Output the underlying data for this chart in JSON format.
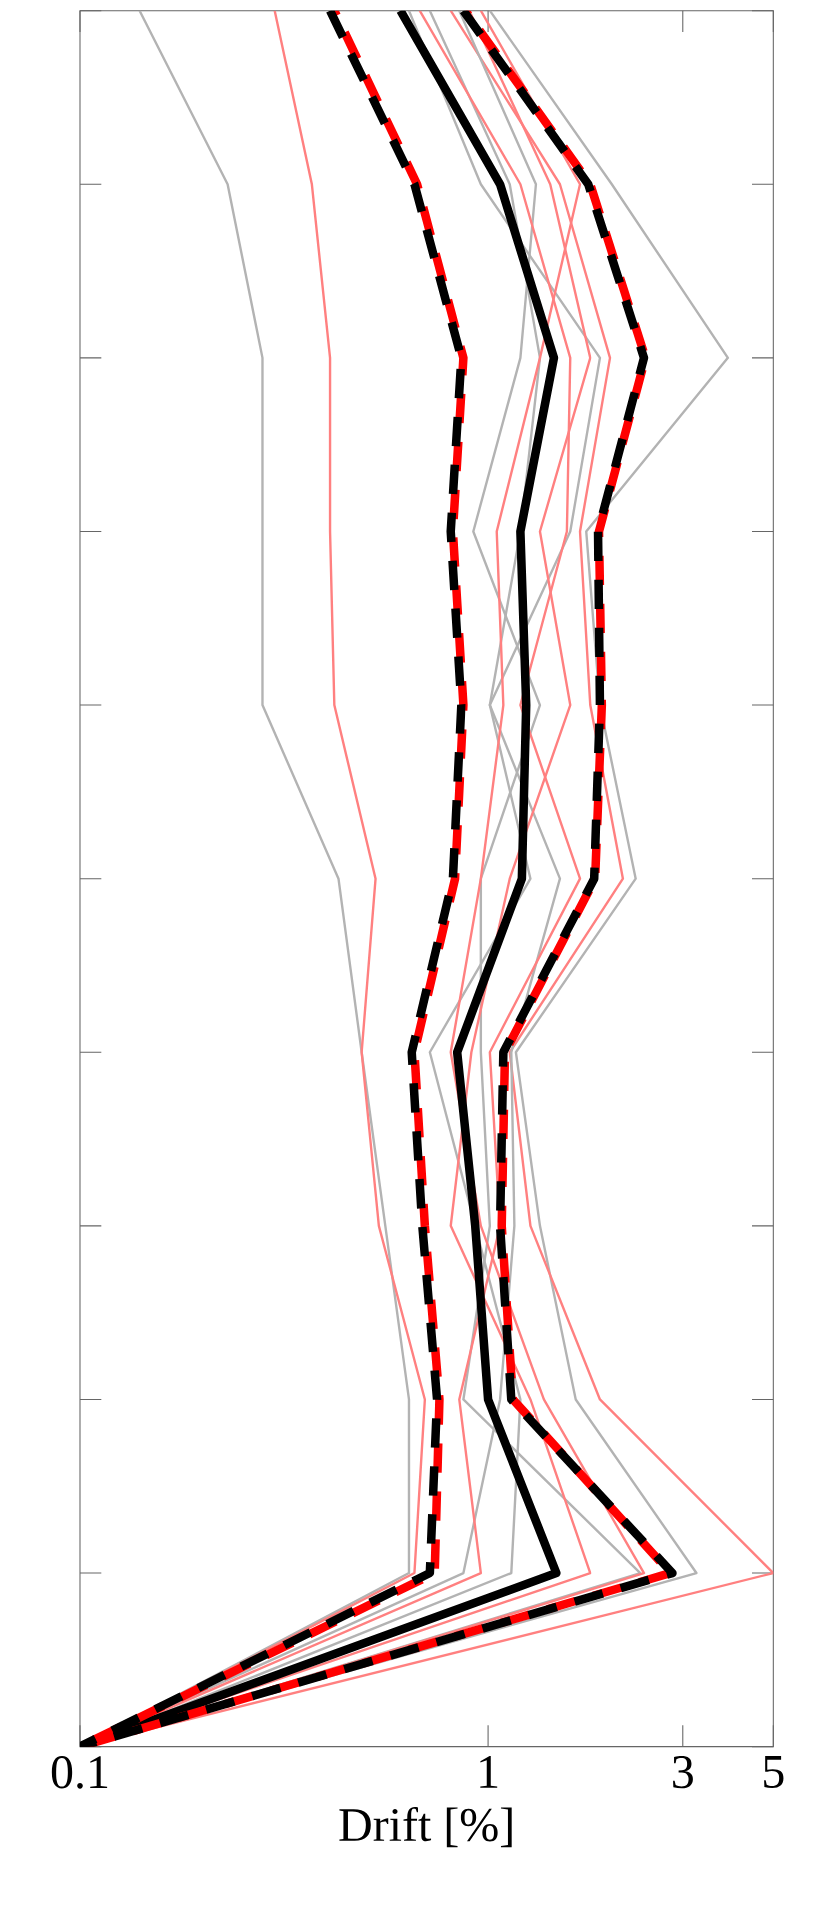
{
  "chart_data": {
    "type": "line",
    "orientation": "horizontal",
    "xlabel": "Drift [%]",
    "categories": [
      null,
      null,
      null,
      null,
      null,
      null,
      null,
      null,
      null,
      null,
      null
    ],
    "xlim": [
      0.1,
      5
    ],
    "xticks": [
      0.1,
      1,
      3,
      5
    ],
    "log": "x",
    "tick_labels": "x",
    "series": [
      {
        "color": "#b3b3b3",
        "line_style": "solid",
        "values": [
          0.14,
          0.23,
          0.28,
          0.28,
          0.28,
          0.43,
          0.49,
          0.56,
          0.64,
          0.64,
          0.1
        ]
      },
      {
        "color": "#ff8080",
        "line_style": "solid",
        "values": [
          0.3,
          0.37,
          0.41,
          0.41,
          0.42,
          0.53,
          0.49,
          0.54,
          0.7,
          0.66,
          0.1
        ]
      },
      {
        "color": "#b3b3b3",
        "line_style": "solid",
        "values": [
          1.01,
          2.01,
          3.87,
          1.74,
          1.88,
          2.3,
          1.17,
          1.34,
          1.64,
          3.24,
          0.1
        ]
      },
      {
        "color": "#ff8080",
        "line_style": "solid",
        "values": [
          0.81,
          1.5,
          1.99,
          1.68,
          1.78,
          2.14,
          1.13,
          1.27,
          1.88,
          5,
          0.1
        ]
      },
      {
        "color": "#b3b3b3",
        "line_style": "solid",
        "values": [
          0.72,
          1.13,
          1.34,
          1.2,
          1.01,
          1.27,
          0.72,
          0.93,
          1.2,
          1.14,
          0.1
        ]
      },
      {
        "color": "#b3b3b3",
        "line_style": "solid",
        "values": [
          0.85,
          1.31,
          1.2,
          0.92,
          1.34,
          0.96,
          0.96,
          1.01,
          0.87,
          2.36,
          0.1
        ]
      },
      {
        "color": "#b3b3b3",
        "line_style": "solid",
        "values": [
          0.64,
          0.96,
          1.88,
          1.59,
          1.01,
          1.5,
          1.14,
          1.16,
          1.07,
          0.87,
          0.1
        ]
      },
      {
        "color": "#ff8080",
        "line_style": "solid",
        "values": [
          0.9,
          1.42,
          1.78,
          1.34,
          1.59,
          1.13,
          0.91,
          0.81,
          1.27,
          1.78,
          0.1
        ]
      },
      {
        "color": "#ff8080",
        "line_style": "solid",
        "values": [
          0.68,
          1.2,
          1.59,
          1.56,
          1.2,
          1.68,
          1.01,
          1.07,
          0.85,
          0.96,
          0.1
        ]
      },
      {
        "color": "#ff8080",
        "line_style": "solid",
        "values": [
          0.96,
          1.68,
          1.34,
          1.05,
          1.09,
          0.96,
          0.81,
          0.96,
          1.37,
          2.41,
          0.1
        ]
      },
      {
        "color": "#000000",
        "line_style": "solid",
        "values": [
          0.61,
          1.07,
          1.45,
          1.2,
          1.24,
          1.21,
          0.84,
          0.93,
          1.0,
          1.47,
          0.1
        ]
      },
      {
        "color": "#ff0000",
        "line_style": "dashed",
        "values": [
          0.42,
          0.67,
          0.87,
          0.82,
          0.87,
          0.83,
          0.66,
          0.7,
          0.76,
          0.74,
          0.1
        ]
      },
      {
        "color": "#ff0000",
        "line_style": "dashed",
        "values": [
          0.88,
          1.78,
          2.43,
          1.87,
          1.9,
          1.83,
          1.1,
          1.08,
          1.15,
          2.8,
          0.1
        ]
      },
      {
        "color": "#000000",
        "line_style": "dashed",
        "values": [
          0.41,
          0.66,
          0.86,
          0.81,
          0.86,
          0.82,
          0.65,
          0.69,
          0.75,
          0.72,
          0.1
        ]
      },
      {
        "color": "#000000",
        "line_style": "dashed",
        "values": [
          0.87,
          1.76,
          2.41,
          1.86,
          1.88,
          1.82,
          1.09,
          1.07,
          1.14,
          2.83,
          0.1
        ]
      }
    ]
  }
}
